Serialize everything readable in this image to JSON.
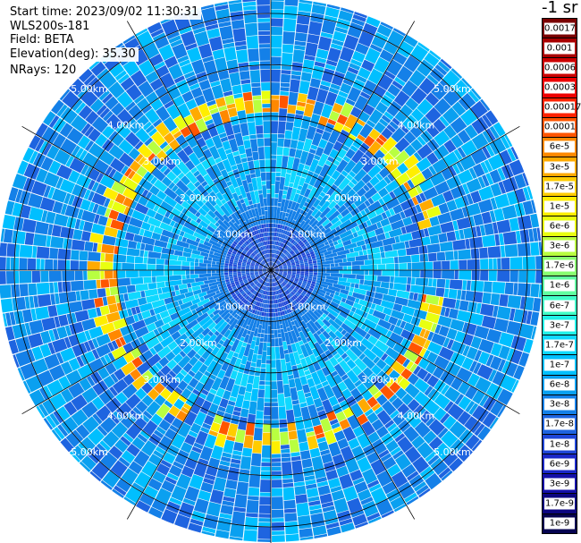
{
  "info": {
    "start_time": "Start time: 2023/09/02 11:30:31",
    "instrument": "WLS200s-181",
    "field": "Field: BETA",
    "elevation": "Elevation(deg): 35.30",
    "nrays": "NRays: 120"
  },
  "colorbar": {
    "unit": "-1 sr",
    "levels": [
      {
        "label": "0.0017",
        "color": "#7a0000"
      },
      {
        "label": "0.001",
        "color": "#a80000"
      },
      {
        "label": "0.0006",
        "color": "#cc0000"
      },
      {
        "label": "0.0003",
        "color": "#ee0000"
      },
      {
        "label": "0.00017",
        "color": "#ff2200"
      },
      {
        "label": "0.0001",
        "color": "#ff5500"
      },
      {
        "label": "6e-5",
        "color": "#ff8800"
      },
      {
        "label": "3e-5",
        "color": "#ffaa00"
      },
      {
        "label": "1.7e-5",
        "color": "#ffcc00"
      },
      {
        "label": "1e-5",
        "color": "#ffee00"
      },
      {
        "label": "6e-6",
        "color": "#e8ff10"
      },
      {
        "label": "3e-6",
        "color": "#b8ff40"
      },
      {
        "label": "1.7e-6",
        "color": "#88ff70"
      },
      {
        "label": "1e-6",
        "color": "#60ffa0"
      },
      {
        "label": "6e-7",
        "color": "#40ffc8"
      },
      {
        "label": "3e-7",
        "color": "#20f0e8"
      },
      {
        "label": "1.7e-7",
        "color": "#10d8ff"
      },
      {
        "label": "1e-7",
        "color": "#00bfff"
      },
      {
        "label": "6e-8",
        "color": "#0aa0f0"
      },
      {
        "label": "3e-8",
        "color": "#1480e8"
      },
      {
        "label": "1.7e-8",
        "color": "#1e64e0"
      },
      {
        "label": "1e-8",
        "color": "#1e46d8"
      },
      {
        "label": "6e-9",
        "color": "#1a28c8"
      },
      {
        "label": "3e-9",
        "color": "#1410a8"
      },
      {
        "label": "1.7e-9",
        "color": "#0c0680"
      },
      {
        "label": "1e-9",
        "color": "#060350"
      }
    ]
  },
  "chart_data": {
    "type": "heatmap",
    "projection": "polar-ppi",
    "n_rays": 120,
    "range_rings_km": [
      1,
      2,
      3,
      4,
      5
    ],
    "range_labels": [
      "1.00km",
      "2.00km",
      "3.00km",
      "4.00km",
      "5.00km"
    ],
    "max_range_km": 5.5,
    "grid_spokes_deg": [
      0,
      30,
      60,
      90,
      120,
      150,
      180,
      210,
      240,
      270,
      300,
      330
    ],
    "value_field": "BETA",
    "dominant_range": [
      "3e-8",
      "1e-7"
    ],
    "near_field_range": [
      "6e-9",
      "3e-8"
    ],
    "aerosol_ring": {
      "range_km": [
        3.0,
        3.4
      ],
      "values": [
        "1e-5",
        "0.0001"
      ],
      "sectors_deg": [
        [
          210,
          360
        ],
        [
          0,
          75
        ],
        [
          100,
          160
        ],
        [
          150,
          200
        ]
      ]
    }
  }
}
